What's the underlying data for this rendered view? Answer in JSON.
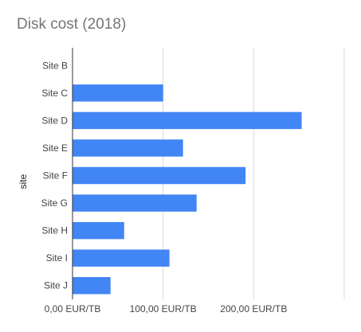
{
  "chart_data": {
    "type": "bar",
    "orientation": "horizontal",
    "title": "Disk cost (2018)",
    "xlabel": "",
    "ylabel": "site",
    "categories": [
      "Site B",
      "Site C",
      "Site D",
      "Site E",
      "Site F",
      "Site G",
      "Site H",
      "Site I",
      "Site J"
    ],
    "values": [
      0,
      100,
      253,
      122,
      191,
      137,
      57,
      107,
      42
    ],
    "xlim": [
      0,
      300
    ],
    "x_ticks": [
      0,
      100,
      200,
      300
    ],
    "x_tick_labels": [
      "0,00 EUR/TB",
      "100,00 EUR/TB",
      "200,00 EUR/TB",
      ""
    ],
    "grid": true,
    "legend": "none",
    "colors": {
      "bar": "#4285f4",
      "grid": "#d9d9d9",
      "axis": "#333333"
    }
  }
}
